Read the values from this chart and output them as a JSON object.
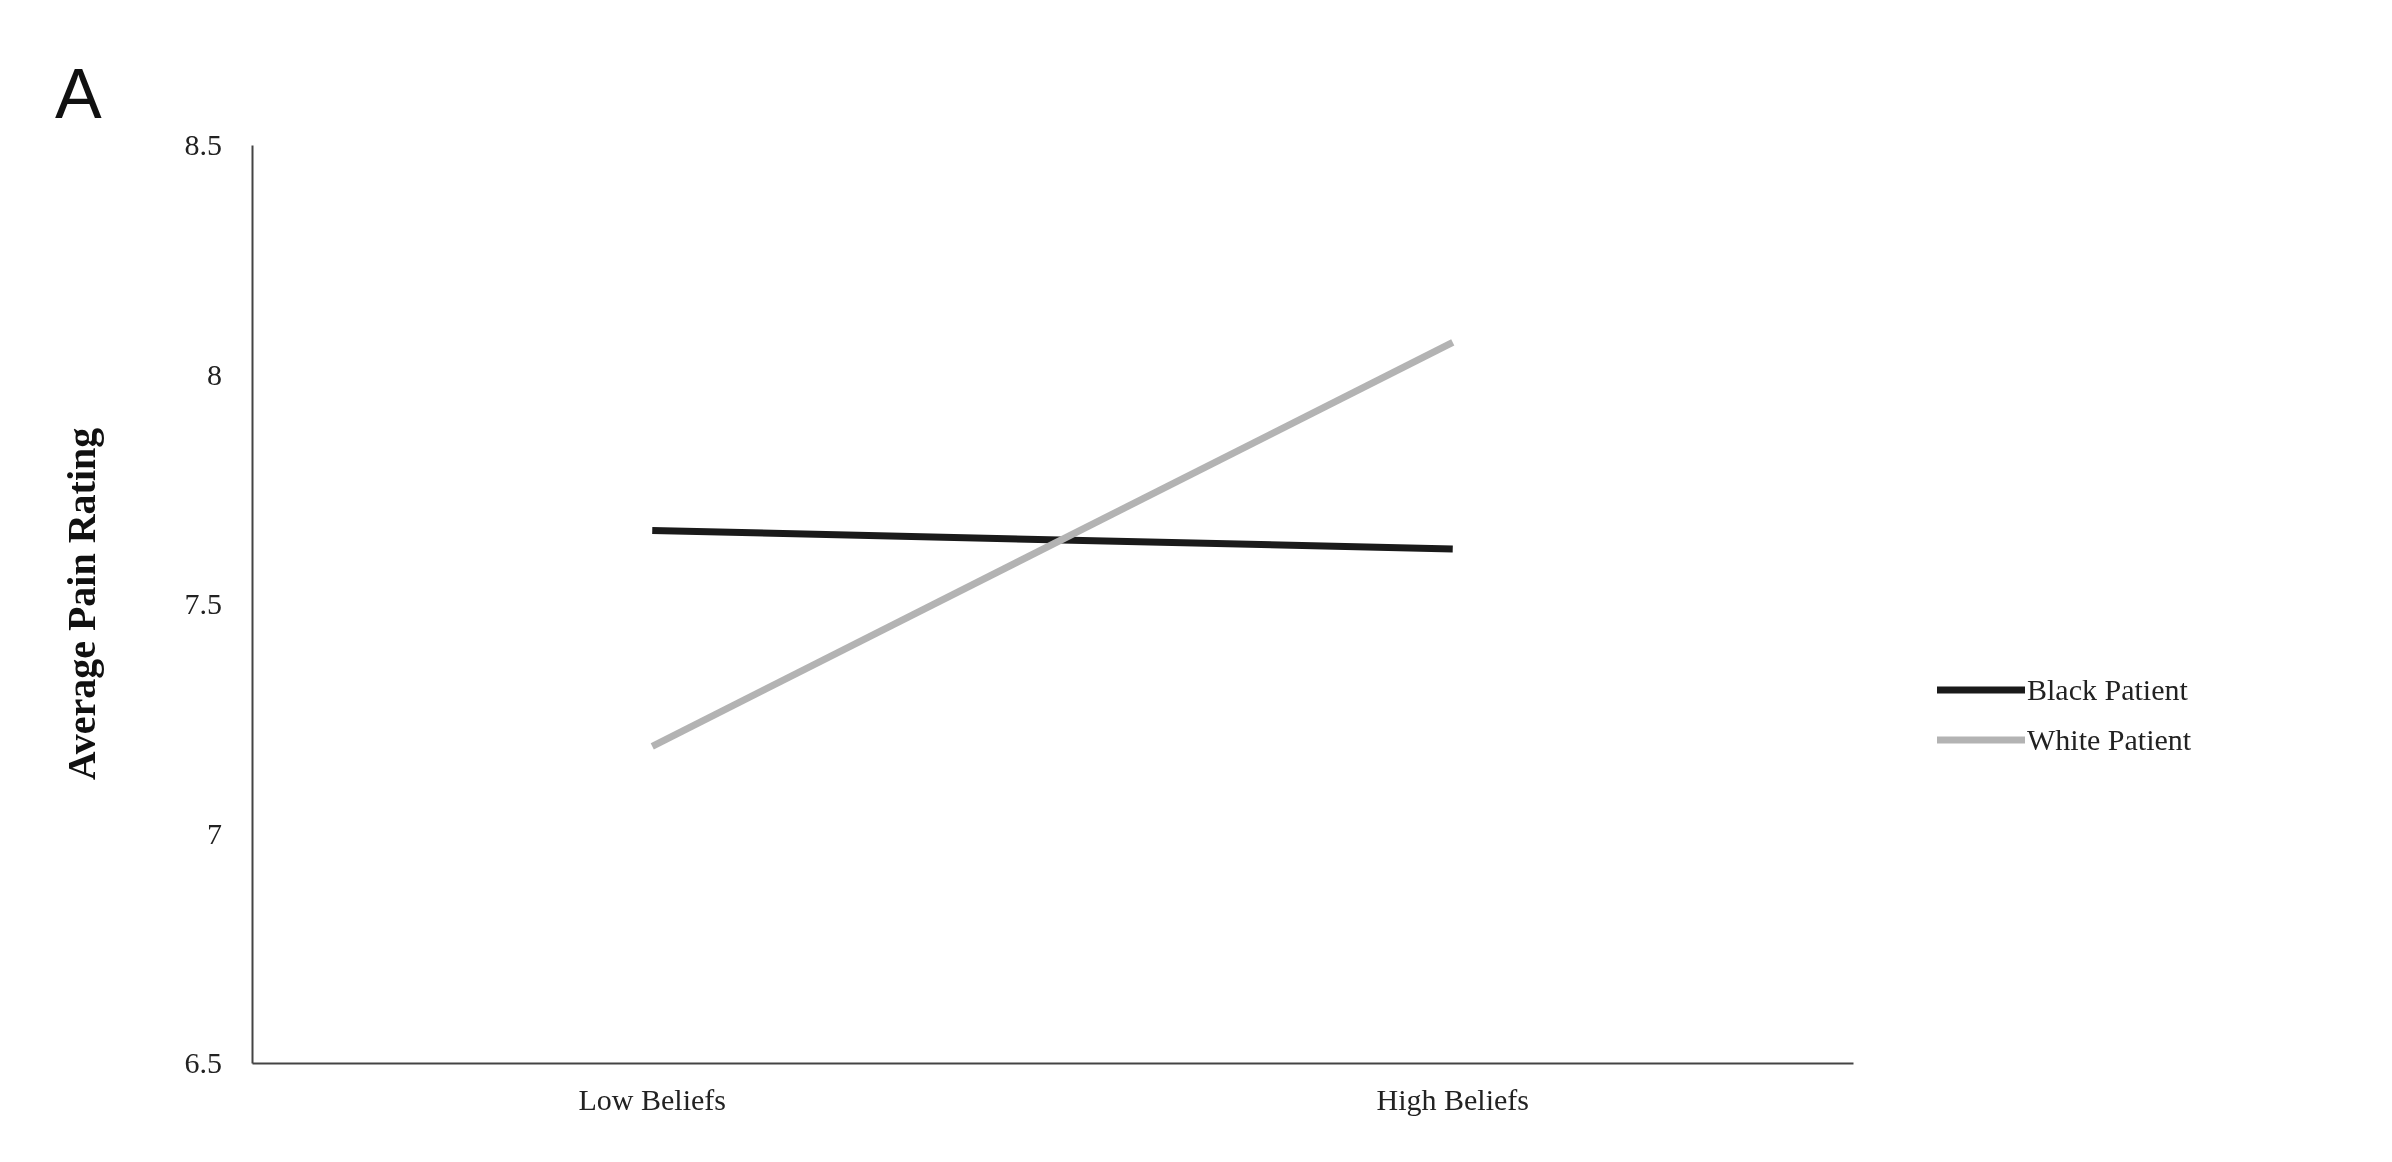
{
  "chart_data": {
    "type": "line",
    "title": "A",
    "ylabel": "Average Pain Rating",
    "categories": [
      "Low Beliefs",
      "High Beliefs"
    ],
    "series": [
      {
        "name": "Black Patient",
        "color": "#1a1a1a",
        "values": [
          7.66,
          7.62
        ]
      },
      {
        "name": "White Patient",
        "color": "#b3b3b3",
        "values": [
          7.19,
          8.07
        ]
      }
    ],
    "ylim": [
      6.5,
      8.5
    ],
    "yticks": [
      6.5,
      7,
      7.5,
      8,
      8.5
    ],
    "grid": false,
    "legend": "right",
    "marker": "none"
  }
}
